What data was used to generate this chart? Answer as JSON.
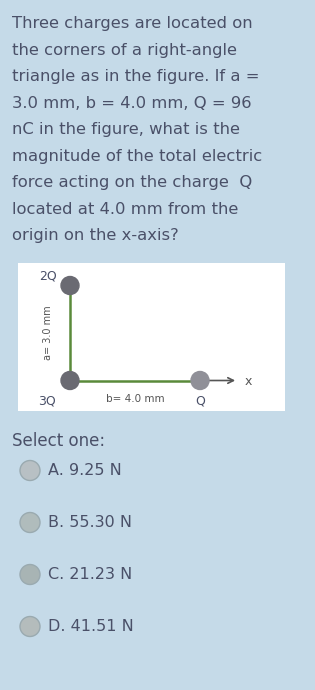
{
  "bg_color": "#c5dae8",
  "diagram_bg": "#ffffff",
  "question_text_lines": [
    "Three charges are located on",
    "the corners of a right-angle",
    "triangle as in the figure. If a =",
    "3.0 mm, b = 4.0 mm, Q = 96",
    "nC in the figure, what is the",
    "magnitude of the total electric",
    "force acting on the charge  Q",
    "located at 4.0 mm from the",
    "origin on the x-axis?"
  ],
  "question_fontsize": 11.8,
  "question_color": "#4a5068",
  "line_color": "#5a8a3a",
  "node_color_dark": "#6a6a72",
  "node_color_light": "#909098",
  "label_2Q": "2Q",
  "label_3Q": "3Q",
  "label_Q": "Q",
  "label_b": "b= 4.0 mm",
  "label_a": "a= 3.0 mm",
  "label_x": "x",
  "select_text": "Select one:",
  "options": [
    "A. 9.25 N",
    "B. 55.30 N",
    "C. 21.23 N",
    "D. 41.51 N"
  ],
  "option_fontsize": 11.5,
  "option_color": "#4a5068",
  "radio_fills": [
    "#b8c0c4",
    "#b0bcbc",
    "#a8b4b4",
    "#b4bcbc"
  ],
  "radio_edge": "#9aaab0"
}
